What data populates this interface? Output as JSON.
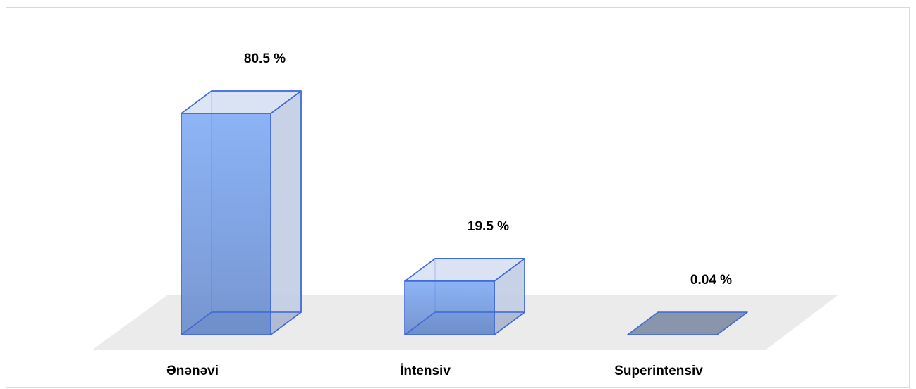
{
  "chart_data": {
    "type": "bar",
    "categories": [
      "Ənənəvi",
      "İntensiv",
      "Superintensiv"
    ],
    "values": [
      80.5,
      19.5,
      0.04
    ],
    "data_labels": [
      "80.5 %",
      "19.5 %",
      "0.04 %"
    ],
    "unit": "%",
    "title": "",
    "xlabel": "",
    "ylabel": "",
    "ylim": [
      0,
      100
    ],
    "grid": false,
    "legend": "none",
    "colors": {
      "bar_front": "#7aa5ec",
      "bar_front_bottom": "#6f8fca",
      "bar_side": "#c9d2e6",
      "bar_top": "#d6e0f3",
      "bar_edge": "#3f68d6",
      "floor": "#ebebeb",
      "base": "#8895aa"
    }
  }
}
